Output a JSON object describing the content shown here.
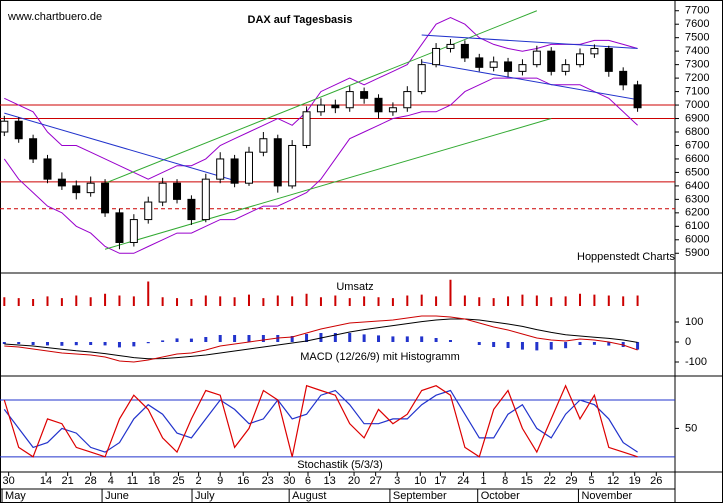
{
  "chart_data": [
    {
      "type": "candlestick",
      "title": "DAX auf Tagesbasis",
      "source": "www.chartbuero.de",
      "credit": "Hoppenstedt Charts",
      "open": [
        6800,
        6880,
        6750,
        6600,
        6450,
        6400,
        6350,
        6420,
        6200,
        5980,
        6150,
        6280,
        6420,
        6300,
        6150,
        6450,
        6600,
        6420,
        6650,
        6750,
        6400,
        6700,
        6950,
        7000,
        6980,
        7100,
        7050,
        6950,
        6980,
        7100,
        7300,
        7420,
        7450,
        7350,
        7280,
        7320,
        7250,
        7300,
        7400,
        7250,
        7300,
        7380,
        7420,
        7250,
        7150
      ],
      "high": [
        6920,
        6910,
        6780,
        6630,
        6500,
        6440,
        6470,
        6450,
        6230,
        6190,
        6320,
        6460,
        6450,
        6330,
        6490,
        6650,
        6630,
        6690,
        6800,
        6780,
        6740,
        6990,
        7050,
        7040,
        7140,
        7130,
        7080,
        7020,
        7140,
        7340,
        7460,
        7490,
        7480,
        7380,
        7360,
        7350,
        7340,
        7440,
        7430,
        7340,
        7420,
        7450,
        7440,
        7280,
        7180
      ],
      "low": [
        6770,
        6720,
        6570,
        6420,
        6370,
        6300,
        6320,
        6170,
        5930,
        5950,
        6120,
        6250,
        6270,
        6110,
        6130,
        6420,
        6390,
        6400,
        6620,
        6350,
        6380,
        6680,
        6920,
        6940,
        6950,
        7010,
        6900,
        6920,
        6950,
        7080,
        7280,
        7390,
        7320,
        7250,
        7250,
        7210,
        7220,
        7280,
        7220,
        7220,
        7280,
        7350,
        7210,
        7110,
        6950
      ],
      "close": [
        6880,
        6750,
        6600,
        6450,
        6400,
        6350,
        6420,
        6200,
        5980,
        6150,
        6280,
        6420,
        6300,
        6150,
        6450,
        6600,
        6420,
        6650,
        6750,
        6400,
        6700,
        6950,
        7000,
        6980,
        7100,
        7050,
        6950,
        6980,
        7100,
        7300,
        7420,
        7450,
        7350,
        7280,
        7320,
        7250,
        7300,
        7400,
        7250,
        7300,
        7380,
        7420,
        7250,
        7150,
        6980
      ],
      "upper_band": [
        7050,
        7000,
        6950,
        6800,
        6700,
        6700,
        6650,
        6600,
        6550,
        6500,
        6450,
        6500,
        6550,
        6550,
        6600,
        6700,
        6750,
        6800,
        6850,
        6900,
        6850,
        6950,
        7100,
        7150,
        7200,
        7150,
        7200,
        7250,
        7300,
        7450,
        7600,
        7650,
        7600,
        7500,
        7450,
        7420,
        7400,
        7420,
        7450,
        7450,
        7450,
        7480,
        7480,
        7450,
        7420
      ],
      "lower_band": [
        6600,
        6450,
        6350,
        6250,
        6200,
        6100,
        6050,
        5950,
        5900,
        5900,
        5950,
        6000,
        6050,
        6050,
        6100,
        6150,
        6150,
        6200,
        6250,
        6250,
        6300,
        6350,
        6450,
        6600,
        6750,
        6800,
        6850,
        6900,
        6920,
        6950,
        6950,
        7000,
        7100,
        7150,
        7200,
        7200,
        7200,
        7200,
        7150,
        7150,
        7150,
        7100,
        7050,
        6950,
        6850
      ],
      "band_color": "#9900cc",
      "ylim": [
        5850,
        7750
      ],
      "yticks": [
        5900,
        6000,
        6100,
        6200,
        6300,
        6400,
        6500,
        6600,
        6700,
        6800,
        6900,
        7000,
        7100,
        7200,
        7300,
        7400,
        7500,
        7600,
        7700
      ],
      "levels": [
        {
          "value": 7000,
          "color": "#cc0000",
          "dashed": false
        },
        {
          "value": 6900,
          "color": "#cc0000",
          "dashed": false
        },
        {
          "value": 6430,
          "color": "#cc0000",
          "dashed": false
        },
        {
          "value": 6230,
          "color": "#cc0000",
          "dashed": true
        }
      ],
      "trendlines": [
        {
          "x": [
            7,
            37
          ],
          "y": [
            6420,
            7700
          ],
          "color": "#33aa33"
        },
        {
          "x": [
            7,
            38
          ],
          "y": [
            5930,
            6900
          ],
          "color": "#33aa33"
        },
        {
          "x": [
            0,
            16
          ],
          "y": [
            6940,
            6440
          ],
          "color": "#2233cc"
        },
        {
          "x": [
            29,
            44
          ],
          "y": [
            7520,
            7420
          ],
          "color": "#2233cc"
        },
        {
          "x": [
            29,
            44
          ],
          "y": [
            7320,
            7040
          ],
          "color": "#2233cc"
        }
      ]
    },
    {
      "type": "bar",
      "title": "Umsatz",
      "color": "#cc0000",
      "ylim": [
        0,
        32
      ],
      "values": [
        10,
        9,
        8,
        11,
        9,
        12,
        10,
        14,
        12,
        11,
        28,
        10,
        9,
        8,
        12,
        11,
        10,
        13,
        9,
        12,
        11,
        14,
        10,
        12,
        9,
        11,
        10,
        9,
        12,
        13,
        11,
        30,
        12,
        10,
        9,
        11,
        13,
        12,
        10,
        11,
        14,
        13,
        12,
        11,
        12
      ]
    },
    {
      "type": "macd",
      "title": "MACD (12/26/9) mit Histogramm",
      "ylim": [
        -150,
        150
      ],
      "yticks": [
        100,
        0,
        -100
      ],
      "macd_color": "#cc0000",
      "signal_color": "#000000",
      "histogram_color": "#2233cc",
      "macd": [
        -20,
        -25,
        -35,
        -45,
        -55,
        -60,
        -65,
        -75,
        -95,
        -100,
        -90,
        -75,
        -60,
        -55,
        -40,
        -20,
        -10,
        0,
        10,
        20,
        25,
        45,
        65,
        80,
        95,
        100,
        105,
        110,
        120,
        130,
        130,
        125,
        115,
        95,
        75,
        60,
        40,
        20,
        10,
        5,
        15,
        10,
        0,
        -15,
        -40
      ],
      "signal": [
        -10,
        -15,
        -20,
        -28,
        -36,
        -44,
        -50,
        -58,
        -68,
        -78,
        -84,
        -83,
        -78,
        -72,
        -65,
        -55,
        -45,
        -35,
        -25,
        -15,
        -5,
        5,
        20,
        35,
        50,
        62,
        72,
        82,
        92,
        102,
        110,
        115,
        115,
        110,
        100,
        90,
        78,
        62,
        48,
        36,
        30,
        24,
        18,
        10,
        -2
      ],
      "histogram": [
        -10,
        -10,
        -15,
        -17,
        -19,
        -16,
        -15,
        -17,
        -27,
        -22,
        -6,
        8,
        18,
        17,
        25,
        35,
        35,
        35,
        35,
        35,
        30,
        40,
        45,
        45,
        45,
        38,
        33,
        28,
        28,
        28,
        20,
        10,
        0,
        -15,
        -25,
        -30,
        -38,
        -42,
        -38,
        -31,
        -15,
        -14,
        -18,
        -25,
        -38
      ]
    },
    {
      "type": "stochastic",
      "title": "Stochastik (5/3/3)",
      "ylim": [
        4,
        100
      ],
      "yticks": [
        50
      ],
      "levels": [
        20,
        80
      ],
      "level_color": "#2233cc",
      "k_color": "#dd0000",
      "d_color": "#2233cc",
      "k": [
        80,
        30,
        20,
        60,
        55,
        30,
        25,
        20,
        60,
        85,
        70,
        40,
        25,
        60,
        90,
        85,
        30,
        50,
        90,
        80,
        20,
        95,
        90,
        85,
        55,
        40,
        70,
        55,
        65,
        90,
        95,
        85,
        30,
        20,
        70,
        90,
        50,
        25,
        60,
        95,
        60,
        85,
        30,
        25,
        20
      ],
      "d": [
        70,
        50,
        30,
        35,
        50,
        45,
        30,
        25,
        35,
        60,
        75,
        65,
        45,
        40,
        60,
        80,
        70,
        55,
        60,
        80,
        60,
        65,
        85,
        90,
        75,
        55,
        55,
        60,
        60,
        75,
        85,
        90,
        65,
        40,
        40,
        65,
        75,
        50,
        40,
        65,
        80,
        75,
        60,
        35,
        25
      ]
    }
  ],
  "x_axis": {
    "xlim": [
      -0.3,
      46.6
    ],
    "days": [
      {
        "value": 0.3,
        "label": "30"
      },
      {
        "value": 2.9,
        "label": "14"
      },
      {
        "value": 4.4,
        "label": "21"
      },
      {
        "value": 6,
        "label": "28"
      },
      {
        "value": 7.4,
        "label": "4"
      },
      {
        "value": 8.9,
        "label": "11"
      },
      {
        "value": 10.4,
        "label": "18"
      },
      {
        "value": 12.1,
        "label": "25"
      },
      {
        "value": 13.5,
        "label": "2"
      },
      {
        "value": 15,
        "label": "9"
      },
      {
        "value": 16.6,
        "label": "16"
      },
      {
        "value": 18.3,
        "label": "23"
      },
      {
        "value": 19.8,
        "label": "30"
      },
      {
        "value": 21.1,
        "label": "6"
      },
      {
        "value": 22.6,
        "label": "13"
      },
      {
        "value": 24.3,
        "label": "20"
      },
      {
        "value": 25.8,
        "label": "27"
      },
      {
        "value": 27.3,
        "label": "3"
      },
      {
        "value": 28.9,
        "label": "10"
      },
      {
        "value": 30.3,
        "label": "17"
      },
      {
        "value": 31.9,
        "label": "24"
      },
      {
        "value": 33.3,
        "label": "1"
      },
      {
        "value": 34.8,
        "label": "8"
      },
      {
        "value": 36.3,
        "label": "15"
      },
      {
        "value": 37.9,
        "label": "22"
      },
      {
        "value": 39.4,
        "label": "29"
      },
      {
        "value": 40.8,
        "label": "5"
      },
      {
        "value": 42.3,
        "label": "12"
      },
      {
        "value": 43.8,
        "label": "19"
      },
      {
        "value": 45.3,
        "label": "26"
      }
    ],
    "months": [
      {
        "value": 0.05,
        "label": "May"
      },
      {
        "value": 7,
        "label": "June"
      },
      {
        "value": 13.25,
        "label": "July"
      },
      {
        "value": 20,
        "label": "August"
      },
      {
        "value": 27,
        "label": "September"
      },
      {
        "value": 33.1,
        "label": "October"
      },
      {
        "value": 40.1,
        "label": "November"
      }
    ]
  }
}
